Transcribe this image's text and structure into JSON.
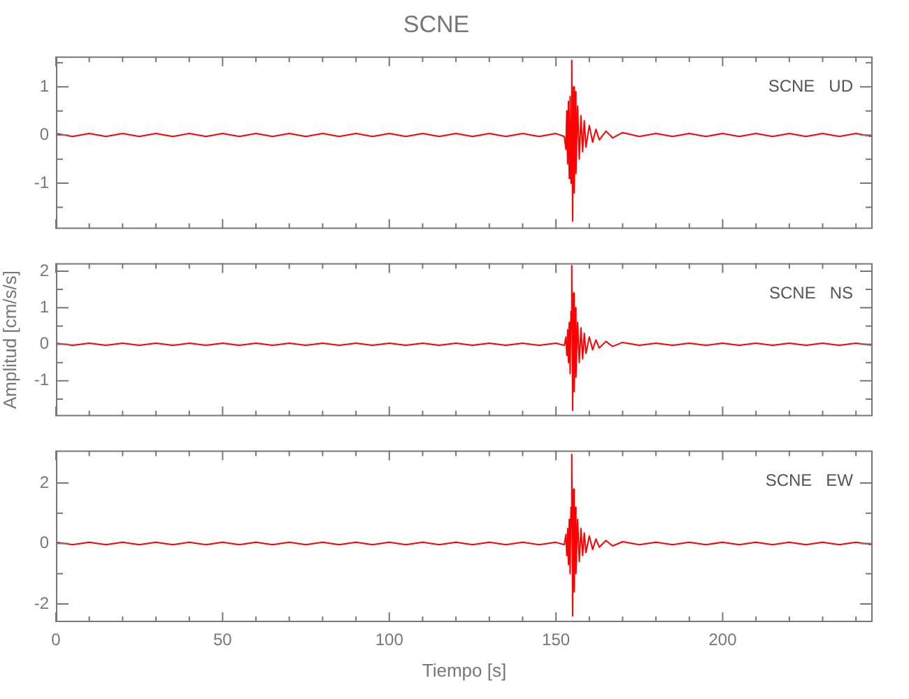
{
  "chart_data": [
    {
      "type": "line",
      "title": "SCNE",
      "annotations": [
        "SCNE   UD"
      ],
      "tick_labels": "y",
      "legend": false,
      "grid": false,
      "marker": "none",
      "line_style": "solid",
      "x": [
        0,
        5,
        10,
        15,
        20,
        25,
        30,
        35,
        40,
        45,
        50,
        55,
        60,
        65,
        70,
        75,
        80,
        85,
        90,
        95,
        100,
        105,
        110,
        115,
        120,
        125,
        130,
        135,
        140,
        145,
        150,
        152.5,
        153,
        153.25,
        153.5,
        153.75,
        154,
        154.25,
        154.5,
        154.75,
        155,
        155.25,
        155.5,
        155.75,
        156,
        156.5,
        157,
        157.5,
        158,
        158.5,
        159,
        160,
        161,
        162,
        163,
        165,
        167,
        170,
        175,
        180,
        185,
        190,
        195,
        200,
        205,
        210,
        215,
        220,
        225,
        230,
        235,
        240,
        245
      ],
      "xlim": [
        0,
        245
      ],
      "xticks": [
        0,
        {
          "value": 10,
          "label": null
        },
        {
          "value": 20,
          "label": null
        },
        {
          "value": 30,
          "label": null
        },
        {
          "value": 40,
          "label": null
        },
        50,
        {
          "value": 60,
          "label": null
        },
        {
          "value": 70,
          "label": null
        },
        {
          "value": 80,
          "label": null
        },
        {
          "value": 90,
          "label": null
        },
        100,
        {
          "value": 110,
          "label": null
        },
        {
          "value": 120,
          "label": null
        },
        {
          "value": 130,
          "label": null
        },
        {
          "value": 140,
          "label": null
        },
        150,
        {
          "value": 160,
          "label": null
        },
        {
          "value": 170,
          "label": null
        },
        {
          "value": 180,
          "label": null
        },
        {
          "value": 190,
          "label": null
        },
        200,
        {
          "value": 210,
          "label": null
        },
        {
          "value": 220,
          "label": null
        },
        {
          "value": 230,
          "label": null
        },
        {
          "value": 240,
          "label": null
        }
      ],
      "ylim": [
        -1.95,
        1.63
      ],
      "yticks": [
        {
          "value": -1.5,
          "label": null
        },
        -1,
        {
          "value": -0.5,
          "label": null
        },
        0,
        {
          "value": 0.5,
          "label": null
        },
        1,
        {
          "value": 1.5,
          "label": null
        }
      ],
      "series": [
        {
          "color": "#ff0000",
          "values": [
            0.03,
            -0.03,
            0.03,
            -0.03,
            0.03,
            -0.03,
            0.03,
            -0.03,
            0.03,
            -0.03,
            0.03,
            -0.03,
            0.03,
            -0.03,
            0.03,
            -0.03,
            0.03,
            -0.03,
            0.03,
            -0.03,
            0.03,
            -0.03,
            0.03,
            -0.03,
            0.03,
            -0.03,
            0.03,
            -0.03,
            0.03,
            -0.03,
            0.03,
            -0.03,
            -0.3,
            0.5,
            -0.6,
            0.7,
            -0.9,
            0.8,
            -1.0,
            1.55,
            -1.79,
            1.0,
            -1.2,
            0.9,
            -0.8,
            0.6,
            -0.5,
            0.4,
            -0.35,
            0.3,
            -0.25,
            0.2,
            -0.15,
            0.12,
            -0.1,
            0.08,
            -0.06,
            0.05,
            -0.03,
            0.03,
            -0.03,
            0.03,
            -0.03,
            0.03,
            -0.03,
            0.03,
            -0.03,
            0.03,
            -0.03,
            0.03,
            -0.03,
            0.03,
            -0.03
          ]
        }
      ]
    },
    {
      "type": "line",
      "ylabel": "Amplitud [cm/s/s]",
      "annotations": [
        "SCNE   NS"
      ],
      "tick_labels": "y",
      "legend": false,
      "grid": false,
      "marker": "none",
      "line_style": "solid",
      "x": [
        0,
        5,
        10,
        15,
        20,
        25,
        30,
        35,
        40,
        45,
        50,
        55,
        60,
        65,
        70,
        75,
        80,
        85,
        90,
        95,
        100,
        105,
        110,
        115,
        120,
        125,
        130,
        135,
        140,
        145,
        150,
        152.5,
        153,
        153.25,
        153.5,
        153.75,
        154,
        154.25,
        154.5,
        154.75,
        155,
        155.25,
        155.5,
        155.75,
        156,
        156.5,
        157,
        157.5,
        158,
        158.5,
        159,
        160,
        161,
        162,
        163,
        165,
        167,
        170,
        175,
        180,
        185,
        190,
        195,
        200,
        205,
        210,
        215,
        220,
        225,
        230,
        235,
        240,
        245
      ],
      "xlim": [
        0,
        245
      ],
      "xticks": [
        0,
        {
          "value": 10,
          "label": null
        },
        {
          "value": 20,
          "label": null
        },
        {
          "value": 30,
          "label": null
        },
        {
          "value": 40,
          "label": null
        },
        50,
        {
          "value": 60,
          "label": null
        },
        {
          "value": 70,
          "label": null
        },
        {
          "value": 80,
          "label": null
        },
        {
          "value": 90,
          "label": null
        },
        100,
        {
          "value": 110,
          "label": null
        },
        {
          "value": 120,
          "label": null
        },
        {
          "value": 130,
          "label": null
        },
        {
          "value": 140,
          "label": null
        },
        150,
        {
          "value": 160,
          "label": null
        },
        {
          "value": 170,
          "label": null
        },
        {
          "value": 180,
          "label": null
        },
        {
          "value": 190,
          "label": null
        },
        200,
        {
          "value": 210,
          "label": null
        },
        {
          "value": 220,
          "label": null
        },
        {
          "value": 230,
          "label": null
        },
        {
          "value": 240,
          "label": null
        }
      ],
      "ylim": [
        -1.97,
        2.22
      ],
      "yticks": [
        {
          "value": -1.5,
          "label": null
        },
        -1,
        {
          "value": -0.5,
          "label": null
        },
        0,
        {
          "value": 0.5,
          "label": null
        },
        1,
        {
          "value": 1.5,
          "label": null
        },
        2
      ],
      "series": [
        {
          "color": "#ff0000",
          "values": [
            0.03,
            -0.03,
            0.03,
            -0.03,
            0.03,
            -0.03,
            0.03,
            -0.03,
            0.03,
            -0.03,
            0.03,
            -0.03,
            0.03,
            -0.03,
            0.03,
            -0.03,
            0.03,
            -0.03,
            0.03,
            -0.03,
            0.03,
            -0.03,
            0.03,
            -0.03,
            0.03,
            -0.03,
            0.03,
            -0.03,
            0.03,
            -0.03,
            0.03,
            -0.03,
            0.2,
            -0.3,
            0.4,
            -0.5,
            0.6,
            -0.8,
            0.9,
            2.15,
            -1.81,
            1.4,
            -1.3,
            1.0,
            -0.9,
            0.6,
            -0.5,
            0.45,
            -0.4,
            0.3,
            -0.25,
            0.2,
            -0.15,
            0.12,
            -0.1,
            0.08,
            -0.06,
            0.05,
            -0.03,
            0.03,
            -0.03,
            0.03,
            -0.03,
            0.03,
            -0.03,
            0.03,
            -0.03,
            0.03,
            -0.03,
            0.03,
            -0.03,
            0.03,
            -0.03
          ]
        }
      ]
    },
    {
      "type": "line",
      "xlabel": "Tiempo [s]",
      "annotations": [
        "SCNE   EW"
      ],
      "legend": false,
      "grid": false,
      "marker": "none",
      "line_style": "solid",
      "x": [
        0,
        5,
        10,
        15,
        20,
        25,
        30,
        35,
        40,
        45,
        50,
        55,
        60,
        65,
        70,
        75,
        80,
        85,
        90,
        95,
        100,
        105,
        110,
        115,
        120,
        125,
        130,
        135,
        140,
        145,
        150,
        152.5,
        153,
        153.25,
        153.5,
        153.75,
        154,
        154.25,
        154.5,
        154.75,
        155,
        155.25,
        155.5,
        155.75,
        156,
        156.5,
        157,
        157.5,
        158,
        158.5,
        159,
        160,
        161,
        162,
        163,
        165,
        167,
        170,
        175,
        180,
        185,
        190,
        195,
        200,
        205,
        210,
        215,
        220,
        225,
        230,
        235,
        240,
        245
      ],
      "xlim": [
        0,
        245
      ],
      "xticks": [
        0,
        {
          "value": 10,
          "label": null
        },
        {
          "value": 20,
          "label": null
        },
        {
          "value": 30,
          "label": null
        },
        {
          "value": 40,
          "label": null
        },
        50,
        {
          "value": 60,
          "label": null
        },
        {
          "value": 70,
          "label": null
        },
        {
          "value": 80,
          "label": null
        },
        {
          "value": 90,
          "label": null
        },
        100,
        {
          "value": 110,
          "label": null
        },
        {
          "value": 120,
          "label": null
        },
        {
          "value": 130,
          "label": null
        },
        {
          "value": 140,
          "label": null
        },
        150,
        {
          "value": 160,
          "label": null
        },
        {
          "value": 170,
          "label": null
        },
        {
          "value": 180,
          "label": null
        },
        {
          "value": 190,
          "label": null
        },
        200,
        {
          "value": 210,
          "label": null
        },
        {
          "value": 220,
          "label": null
        },
        {
          "value": 230,
          "label": null
        },
        {
          "value": 240,
          "label": null
        }
      ],
      "ylim": [
        -2.6,
        3.08
      ],
      "yticks": [
        -2,
        {
          "value": -1,
          "label": null
        },
        0,
        {
          "value": 1,
          "label": null
        },
        2
      ],
      "series": [
        {
          "color": "#ff0000",
          "values": [
            0.04,
            -0.04,
            0.04,
            -0.04,
            0.04,
            -0.04,
            0.04,
            -0.04,
            0.04,
            -0.04,
            0.04,
            -0.04,
            0.04,
            -0.04,
            0.04,
            -0.04,
            0.04,
            -0.04,
            0.04,
            -0.04,
            0.04,
            -0.04,
            0.04,
            -0.04,
            0.04,
            -0.04,
            0.04,
            -0.04,
            0.04,
            -0.04,
            0.04,
            -0.04,
            0.3,
            -0.4,
            0.5,
            -0.7,
            0.8,
            -1.0,
            1.2,
            2.95,
            -2.4,
            1.8,
            -1.6,
            1.2,
            -1.0,
            0.8,
            -0.6,
            0.5,
            -0.4,
            0.35,
            -0.3,
            0.25,
            -0.2,
            0.15,
            -0.12,
            0.1,
            -0.08,
            0.06,
            -0.04,
            0.04,
            -0.04,
            0.04,
            -0.04,
            0.04,
            -0.04,
            0.04,
            -0.04,
            0.04,
            -0.04,
            0.04,
            -0.04,
            0.04,
            -0.04
          ]
        }
      ]
    }
  ]
}
